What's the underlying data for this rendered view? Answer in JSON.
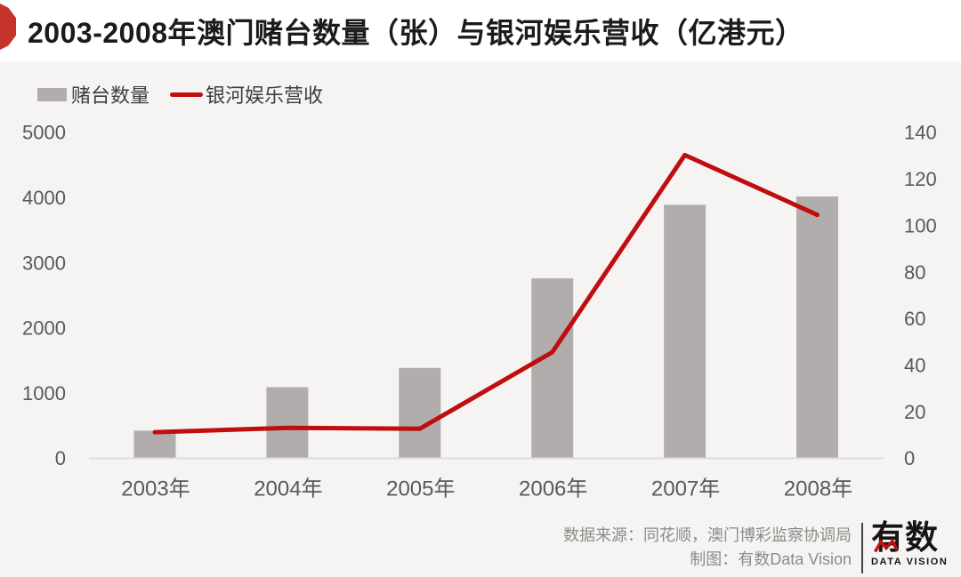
{
  "header": {
    "title": "2003-2008年澳门赌台数量（张）与银河娱乐营收（亿港元）"
  },
  "chart_data": {
    "type": "bar+line",
    "title": "2003-2008年澳门赌台数量（张）与银河娱乐营收（亿港元）",
    "categories": [
      "2003年",
      "2004年",
      "2005年",
      "2006年",
      "2007年",
      "2008年"
    ],
    "series": [
      {
        "name": "赌台数量",
        "type": "bar",
        "axis": "left",
        "unit": "张",
        "color": "#b1adac",
        "values": [
          424,
          1092,
          1388,
          2762,
          3890,
          4017
        ]
      },
      {
        "name": "银河娱乐营收",
        "type": "line",
        "axis": "right",
        "unit": "亿港元",
        "color": "#c00d10",
        "values": [
          11.2,
          13.1,
          12.7,
          45.6,
          130.3,
          104.6
        ]
      }
    ],
    "left_axis": {
      "min": 0,
      "max": 5000,
      "step": 1000,
      "ticks": [
        0,
        1000,
        2000,
        3000,
        4000,
        5000
      ]
    },
    "right_axis": {
      "min": 0,
      "max": 140,
      "step": 20,
      "ticks": [
        0,
        20,
        40,
        60,
        80,
        100,
        120,
        140
      ]
    },
    "grid": false,
    "legend_position": "top-left"
  },
  "footer": {
    "source": "数据来源：同花顺，澳门博彩监察协调局",
    "credit": "制图：有数Data Vision",
    "logo_text": "有数",
    "logo_subtext": "DATA VISION"
  },
  "colors": {
    "accent_red": "#c4342b",
    "bar_gray": "#b1adac",
    "line_red": "#c00d10",
    "page_bg": "#f5f4f3",
    "title_bg": "#ffffff",
    "axis_text": "#5a5858",
    "baseline": "#dcdbda",
    "footer_text": "#8d8b88",
    "logo_black": "#171514"
  }
}
